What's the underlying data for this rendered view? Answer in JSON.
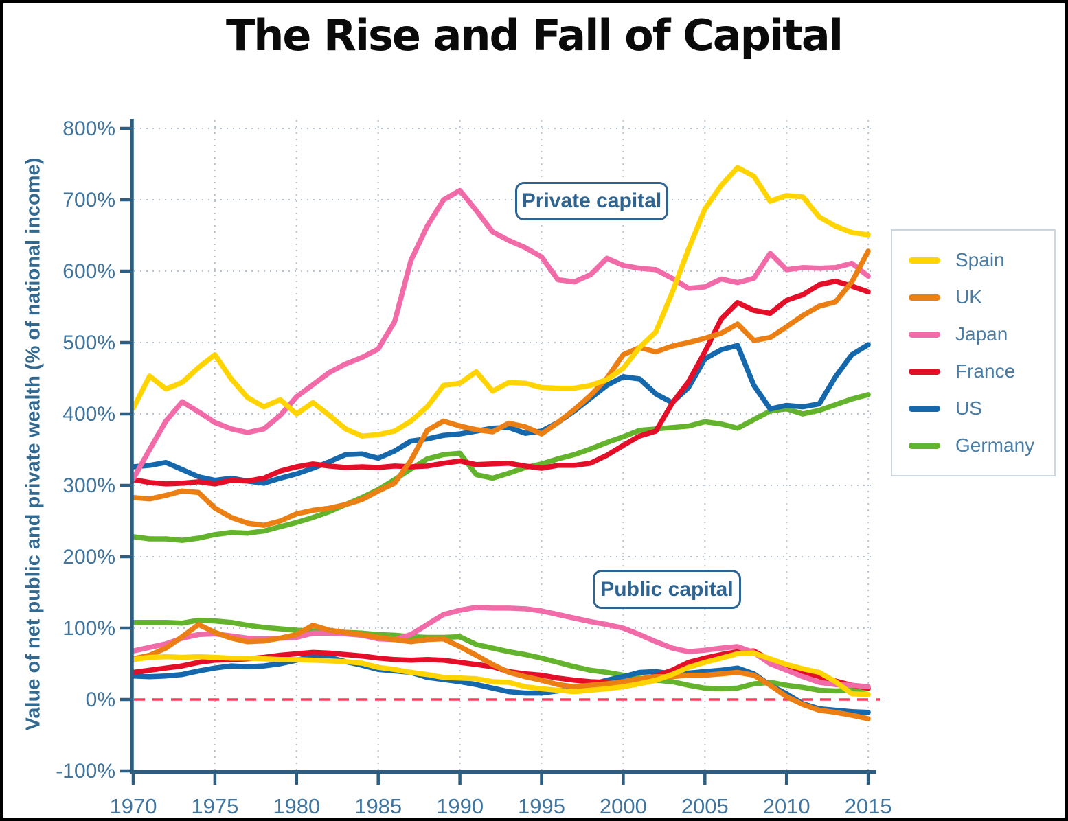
{
  "page": {
    "title": "The Rise and Fall of Capital"
  },
  "colors": {
    "axis": "#2d5e82",
    "tick_label": "#41759e",
    "gridline": "#b5c3d4",
    "zero_line": "#f93e5f",
    "annotation": "#2f6390",
    "title_text": "#0a0a0a"
  },
  "chart_data": {
    "type": "line",
    "title": "The Rise and Fall of Capital",
    "ylabel": "Value of net public and private wealth (% of national income)",
    "xlim": [
      1970,
      2015
    ],
    "ylim": [
      -100,
      800
    ],
    "grid": "dotted light-blue gridlines every 5 years and every 100%; dashed red reference line at 0%",
    "legend_position": "right",
    "annotations": {
      "private": "Private capital",
      "public": "Public capital"
    },
    "y_ticks": [
      {
        "value": 800,
        "label": "800%"
      },
      {
        "value": 700,
        "label": "700%"
      },
      {
        "value": 600,
        "label": "600%"
      },
      {
        "value": 500,
        "label": "500%"
      },
      {
        "value": 400,
        "label": "400%"
      },
      {
        "value": 300,
        "label": "300%"
      },
      {
        "value": 200,
        "label": "200%"
      },
      {
        "value": 100,
        "label": "100%"
      },
      {
        "value": 0,
        "label": "0%"
      },
      {
        "value": -100,
        "label": "-100%"
      }
    ],
    "x_ticks": [
      {
        "value": 1970,
        "label": "1970"
      },
      {
        "value": 1975,
        "label": "1975"
      },
      {
        "value": 1980,
        "label": "1980"
      },
      {
        "value": 1985,
        "label": "1985"
      },
      {
        "value": 1990,
        "label": "1990"
      },
      {
        "value": 1995,
        "label": "1995"
      },
      {
        "value": 2000,
        "label": "2000"
      },
      {
        "value": 2005,
        "label": "2005"
      },
      {
        "value": 2010,
        "label": "2010"
      },
      {
        "value": 2015,
        "label": "2015"
      }
    ],
    "years": [
      1970,
      1971,
      1972,
      1973,
      1974,
      1975,
      1976,
      1977,
      1978,
      1979,
      1980,
      1981,
      1982,
      1983,
      1984,
      1985,
      1986,
      1987,
      1988,
      1989,
      1990,
      1991,
      1992,
      1993,
      1994,
      1995,
      1996,
      1997,
      1998,
      1999,
      2000,
      2001,
      2002,
      2003,
      2004,
      2005,
      2006,
      2007,
      2008,
      2009,
      2010,
      2011,
      2012,
      2013,
      2014,
      2015
    ],
    "legend": {
      "entries": [
        {
          "label": "Spain",
          "color": "#ffd400"
        },
        {
          "label": "UK",
          "color": "#ec7f13"
        },
        {
          "label": "Japan",
          "color": "#f16ba8"
        },
        {
          "label": "France",
          "color": "#e50e28"
        },
        {
          "label": "US",
          "color": "#1568ac"
        },
        {
          "label": "Germany",
          "color": "#64b32c"
        }
      ]
    },
    "private_capital": [
      {
        "name": "Spain",
        "color": "#ffd400",
        "values": [
          408,
          453,
          435,
          444,
          465,
          483,
          449,
          423,
          410,
          420,
          400,
          416,
          398,
          379,
          369,
          371,
          376,
          390,
          410,
          440,
          443,
          459,
          432,
          444,
          443,
          437,
          436,
          436,
          440,
          448,
          464,
          493,
          515,
          570,
          631,
          687,
          720,
          745,
          733,
          698,
          706,
          704,
          676,
          663,
          654,
          651
        ]
      },
      {
        "name": "UK",
        "color": "#ec7f13",
        "values": [
          283,
          281,
          286,
          292,
          290,
          268,
          255,
          247,
          244,
          250,
          260,
          265,
          268,
          273,
          280,
          292,
          303,
          335,
          377,
          390,
          383,
          378,
          375,
          387,
          382,
          372,
          388,
          406,
          426,
          450,
          483,
          493,
          487,
          495,
          500,
          506,
          513,
          526,
          503,
          507,
          522,
          538,
          551,
          557,
          585,
          628
        ]
      },
      {
        "name": "Japan",
        "color": "#f16ba8",
        "values": [
          309,
          350,
          390,
          417,
          403,
          388,
          379,
          374,
          379,
          398,
          424,
          441,
          458,
          470,
          479,
          491,
          529,
          615,
          663,
          700,
          713,
          685,
          655,
          643,
          633,
          620,
          588,
          585,
          595,
          618,
          608,
          604,
          602,
          590,
          576,
          578,
          589,
          584,
          590,
          625,
          602,
          605,
          604,
          605,
          611,
          593
        ]
      },
      {
        "name": "France",
        "color": "#e50e28",
        "values": [
          308,
          304,
          302,
          303,
          305,
          302,
          307,
          306,
          310,
          320,
          326,
          330,
          327,
          325,
          326,
          325,
          327,
          326,
          327,
          331,
          334,
          329,
          330,
          331,
          327,
          324,
          328,
          328,
          331,
          342,
          356,
          369,
          376,
          415,
          445,
          487,
          533,
          556,
          545,
          541,
          559,
          567,
          581,
          586,
          579,
          571
        ]
      },
      {
        "name": "US",
        "color": "#1568ac",
        "values": [
          326,
          328,
          332,
          322,
          312,
          307,
          310,
          306,
          303,
          310,
          316,
          324,
          333,
          343,
          344,
          338,
          348,
          362,
          365,
          370,
          372,
          376,
          380,
          381,
          373,
          376,
          388,
          404,
          422,
          440,
          452,
          449,
          428,
          416,
          437,
          477,
          490,
          496,
          440,
          407,
          412,
          410,
          414,
          452,
          483,
          497
        ]
      },
      {
        "name": "Germany",
        "color": "#64b32c",
        "values": [
          228,
          225,
          225,
          223,
          226,
          231,
          234,
          233,
          236,
          242,
          248,
          255,
          263,
          273,
          283,
          294,
          308,
          323,
          337,
          343,
          345,
          315,
          310,
          317,
          325,
          330,
          337,
          343,
          351,
          360,
          368,
          377,
          379,
          381,
          383,
          389,
          386,
          380,
          392,
          404,
          407,
          400,
          405,
          413,
          421,
          427
        ]
      }
    ],
    "public_capital": [
      {
        "name": "Spain",
        "color": "#ffd400",
        "values": [
          56,
          59,
          60,
          59,
          60,
          59,
          58,
          58,
          57,
          56,
          56,
          55,
          54,
          53,
          51,
          45,
          42,
          38,
          35,
          31,
          30,
          29,
          25,
          24,
          18,
          15,
          13,
          11,
          13,
          15,
          18,
          22,
          27,
          35,
          45,
          52,
          58,
          64,
          65,
          57,
          49,
          43,
          38,
          25,
          8,
          7
        ]
      },
      {
        "name": "UK",
        "color": "#ec7f13",
        "values": [
          57,
          62,
          72,
          88,
          105,
          94,
          86,
          81,
          82,
          86,
          91,
          104,
          97,
          94,
          91,
          87,
          84,
          81,
          84,
          85,
          74,
          62,
          49,
          38,
          32,
          27,
          21,
          18,
          20,
          22,
          25,
          29,
          32,
          32,
          34,
          34,
          36,
          38,
          34,
          20,
          4,
          -7,
          -15,
          -18,
          -22,
          -27
        ]
      },
      {
        "name": "Japan",
        "color": "#f16ba8",
        "values": [
          68,
          73,
          78,
          86,
          91,
          92,
          89,
          86,
          85,
          86,
          87,
          93,
          93,
          92,
          90,
          85,
          84,
          91,
          105,
          119,
          125,
          129,
          128,
          128,
          127,
          124,
          119,
          114,
          109,
          105,
          100,
          91,
          81,
          72,
          67,
          69,
          72,
          74,
          66,
          50,
          41,
          32,
          24,
          21,
          20,
          18
        ]
      },
      {
        "name": "France",
        "color": "#e50e28",
        "values": [
          38,
          41,
          44,
          47,
          52,
          55,
          56,
          57,
          59,
          62,
          64,
          66,
          65,
          63,
          61,
          58,
          56,
          55,
          56,
          55,
          52,
          49,
          46,
          39,
          36,
          34,
          30,
          27,
          25,
          24,
          22,
          27,
          33,
          41,
          52,
          58,
          63,
          67,
          68,
          55,
          46,
          39,
          32,
          26,
          20,
          16
        ]
      },
      {
        "name": "US",
        "color": "#1568ac",
        "values": [
          33,
          32,
          33,
          35,
          40,
          44,
          47,
          46,
          47,
          50,
          55,
          61,
          59,
          53,
          48,
          42,
          40,
          38,
          31,
          28,
          25,
          21,
          16,
          11,
          9,
          9,
          12,
          16,
          21,
          27,
          32,
          38,
          39,
          36,
          37,
          39,
          41,
          44,
          36,
          20,
          8,
          -6,
          -13,
          -15,
          -17,
          -18
        ]
      },
      {
        "name": "Germany",
        "color": "#64b32c",
        "values": [
          108,
          108,
          108,
          107,
          111,
          110,
          108,
          104,
          101,
          99,
          97,
          96,
          95,
          94,
          93,
          91,
          90,
          88,
          87,
          87,
          88,
          77,
          72,
          67,
          63,
          58,
          52,
          46,
          41,
          38,
          34,
          30,
          27,
          25,
          20,
          16,
          15,
          16,
          22,
          24,
          20,
          17,
          13,
          12,
          13,
          15
        ]
      }
    ]
  }
}
